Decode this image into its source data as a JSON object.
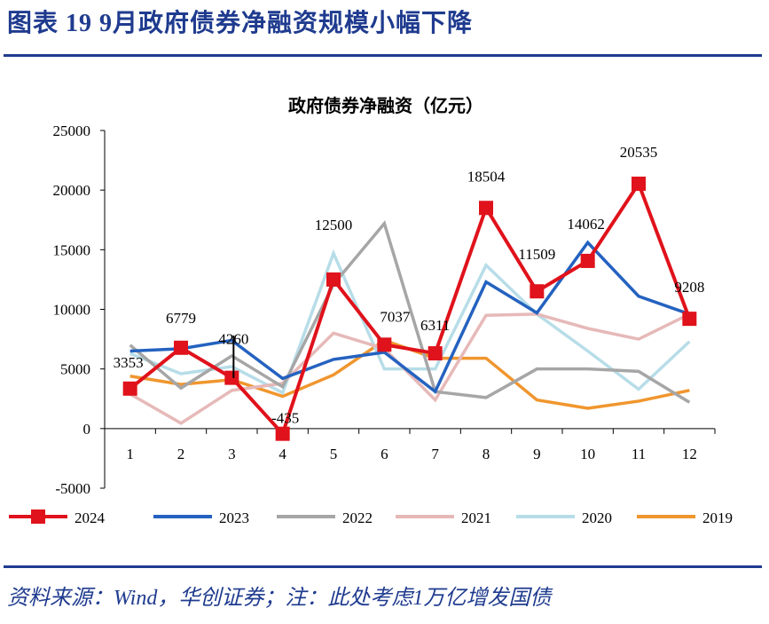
{
  "header": {
    "title": "图表 19   9月政府债券净融资规模小幅下降"
  },
  "source": "资料来源：Wind，华创证券；注：此处考虑1万亿增发国债",
  "chart_data": {
    "type": "line",
    "title": "政府债券净融资（亿元）",
    "categories": [
      "1",
      "2",
      "3",
      "4",
      "5",
      "6",
      "7",
      "8",
      "9",
      "10",
      "11",
      "12"
    ],
    "ylim": [
      -5000,
      25000
    ],
    "yticks": [
      "25000",
      "20000",
      "15000",
      "10000",
      "5000",
      "0",
      "-5000"
    ],
    "grid": false,
    "legend": "bottom",
    "series": [
      {
        "name": "2024",
        "color": "#e0121b",
        "marker": "square",
        "labeled": true,
        "values": [
          3353,
          6779,
          4260,
          -435,
          12500,
          7037,
          6311,
          18504,
          11509,
          14062,
          20535,
          9208
        ]
      },
      {
        "name": "2023",
        "color": "#2462c0",
        "values": [
          6500,
          6700,
          7400,
          4200,
          5800,
          6400,
          3100,
          12300,
          9700,
          15600,
          11100,
          9600
        ]
      },
      {
        "name": "2022",
        "color": "#a6a6a6",
        "values": [
          7000,
          3400,
          6100,
          3500,
          12100,
          17200,
          3100,
          2600,
          5000,
          5000,
          4800,
          2200
        ]
      },
      {
        "name": "2021",
        "color": "#e6b9b8",
        "values": [
          2900,
          450,
          3200,
          3800,
          8000,
          6700,
          2400,
          9500,
          9600,
          8400,
          7500,
          9600
        ]
      },
      {
        "name": "2020",
        "color": "#b7dde8",
        "values": [
          6300,
          4600,
          5200,
          3000,
          14700,
          5000,
          5000,
          13700,
          9600,
          6500,
          3300,
          7300
        ]
      },
      {
        "name": "2019",
        "color": "#f0962e",
        "values": [
          4400,
          3700,
          4100,
          2700,
          4500,
          7400,
          5900,
          5900,
          2400,
          1700,
          2300,
          3200
        ]
      }
    ],
    "data_labels": [
      "3353",
      "6779",
      "4260",
      "-435",
      "12500",
      "7037",
      "6311",
      "18504",
      "11509",
      "14062",
      "20535",
      "9208"
    ]
  }
}
